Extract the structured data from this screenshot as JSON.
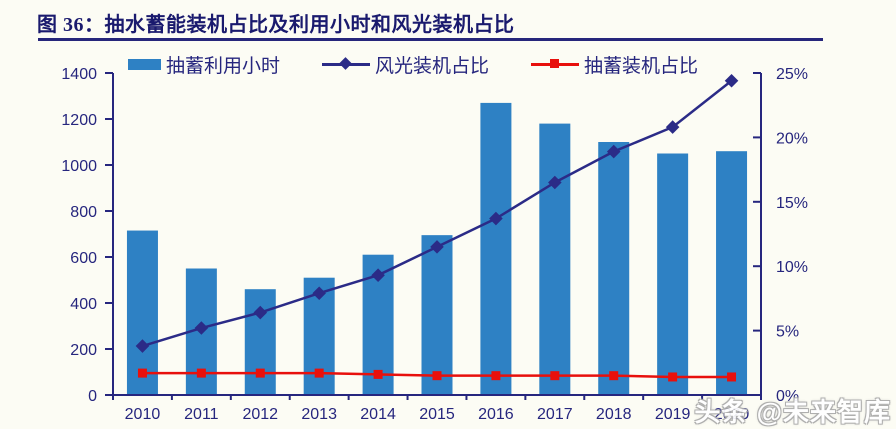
{
  "title": "图 36：抽水蓄能装机占比及利用小时和风光装机占比",
  "watermark": "头条 @未来智库",
  "colors": {
    "background": "#FCFCF4",
    "title_text": "#1A1A6E",
    "title_underline": "#26267B",
    "axis": "#26267E",
    "axis_text": "#26267E",
    "bar": "#2E81C4",
    "wind_line": "#2B2B87",
    "storage_line": "#E8100C"
  },
  "chart_data": {
    "type": "bar",
    "subtype": "bar+line combo, dual axis",
    "categories": [
      "2010",
      "2011",
      "2012",
      "2013",
      "2014",
      "2015",
      "2016",
      "2017",
      "2018",
      "2019",
      "2020"
    ],
    "series": [
      {
        "name": "抽蓄利用小时",
        "type": "bar",
        "axis": "left",
        "marker": "rect",
        "values": [
          715,
          550,
          460,
          510,
          610,
          695,
          1270,
          1180,
          1100,
          1050,
          1060
        ]
      },
      {
        "name": "风光装机占比",
        "type": "line",
        "axis": "right",
        "marker": "diamond",
        "values": [
          3.8,
          5.2,
          6.4,
          7.9,
          9.3,
          11.5,
          13.7,
          16.5,
          18.9,
          20.8,
          24.4
        ]
      },
      {
        "name": "抽蓄装机占比",
        "type": "line",
        "axis": "right",
        "marker": "square",
        "values": [
          1.7,
          1.7,
          1.7,
          1.7,
          1.6,
          1.5,
          1.5,
          1.5,
          1.5,
          1.4,
          1.4
        ]
      }
    ],
    "left_axis": {
      "min": 0,
      "max": 1400,
      "step": 200,
      "tick_labels": [
        "0",
        "200",
        "400",
        "600",
        "800",
        "1000",
        "1200",
        "1400"
      ]
    },
    "right_axis": {
      "min": 0,
      "max": 25,
      "step": 5,
      "tick_labels": [
        "0%",
        "5%",
        "10%",
        "15%",
        "20%",
        "25%"
      ]
    },
    "grid": false,
    "legend_position": "top"
  }
}
